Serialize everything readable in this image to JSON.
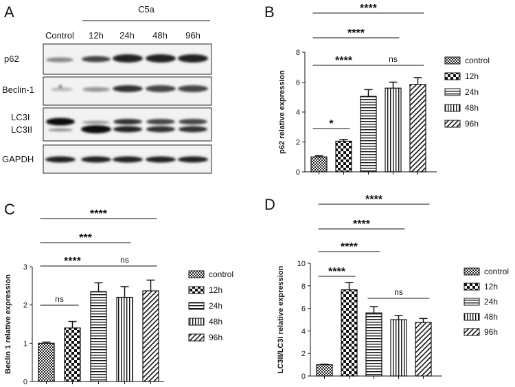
{
  "panel_letters": {
    "A": "A",
    "B": "B",
    "C": "C",
    "D": "D"
  },
  "western_blot": {
    "treatment": "C5a",
    "lanes": [
      "Control",
      "12h",
      "24h",
      "48h",
      "96h"
    ],
    "rows": [
      "p62",
      "Beclin-1",
      "LC3I",
      "LC3II",
      "GAPDH"
    ]
  },
  "legend": [
    "control",
    "12h",
    "24h",
    "48h",
    "96h"
  ],
  "chart_data": [
    {
      "panel": "B",
      "type": "bar",
      "categories": [
        "control",
        "12h",
        "24h",
        "48h",
        "96h"
      ],
      "values": [
        1.0,
        2.05,
        5.05,
        5.6,
        5.85
      ],
      "errors": [
        0.07,
        0.12,
        0.45,
        0.4,
        0.45
      ],
      "ylabel": "p62 relative expression",
      "ylim": [
        0,
        8
      ],
      "yticks": [
        0,
        2,
        4,
        6,
        8
      ],
      "significance": [
        {
          "from": 0,
          "to": 1,
          "label": "*"
        },
        {
          "from": 0,
          "to": 2,
          "label": "****"
        },
        {
          "from": 2,
          "to": 4,
          "label": "ns"
        },
        {
          "from": 0,
          "to": 3,
          "label": "****"
        },
        {
          "from": 0,
          "to": 4,
          "label": "****"
        }
      ]
    },
    {
      "panel": "C",
      "type": "bar",
      "categories": [
        "control",
        "12h",
        "24h",
        "48h",
        "96h"
      ],
      "values": [
        1.0,
        1.4,
        2.35,
        2.2,
        2.37
      ],
      "errors": [
        0.03,
        0.17,
        0.23,
        0.28,
        0.28
      ],
      "ylabel": "Beclin 1 relative expression",
      "ylim": [
        0,
        3
      ],
      "yticks": [
        0,
        1,
        2,
        3
      ],
      "significance": [
        {
          "from": 0,
          "to": 1,
          "label": "ns"
        },
        {
          "from": 0,
          "to": 2,
          "label": "****"
        },
        {
          "from": 2,
          "to": 4,
          "label": "ns"
        },
        {
          "from": 0,
          "to": 3,
          "label": "***"
        },
        {
          "from": 0,
          "to": 4,
          "label": "****"
        }
      ]
    },
    {
      "panel": "D",
      "type": "bar",
      "categories": [
        "control",
        "12h",
        "24h",
        "48h",
        "96h"
      ],
      "values": [
        1.0,
        7.65,
        5.6,
        5.0,
        4.75
      ],
      "errors": [
        0.05,
        0.65,
        0.55,
        0.35,
        0.35
      ],
      "ylabel": "LC3II/LC3I relative expression",
      "ylim": [
        0,
        10
      ],
      "yticks": [
        0,
        2,
        4,
        6,
        8,
        10
      ],
      "significance": [
        {
          "from": 0,
          "to": 1,
          "label": "****"
        },
        {
          "from": 2,
          "to": 4,
          "label": "ns"
        },
        {
          "from": 0,
          "to": 2,
          "label": "****"
        },
        {
          "from": 0,
          "to": 3,
          "label": "****"
        },
        {
          "from": 0,
          "to": 4,
          "label": "****"
        }
      ]
    }
  ]
}
